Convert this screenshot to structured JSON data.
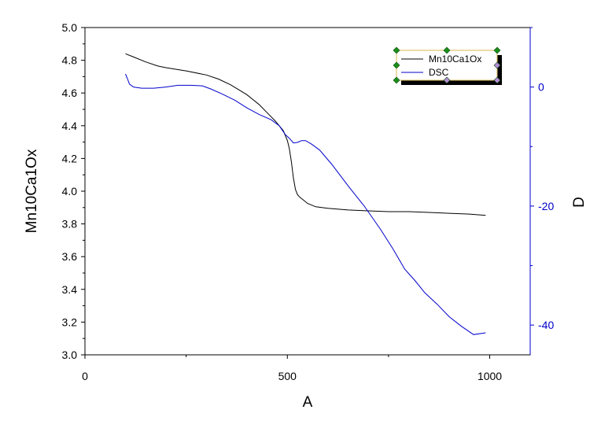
{
  "chart_data": {
    "type": "line",
    "xlabel": "A",
    "ylabel": "Mn10Ca1Ox",
    "y2label": "D",
    "xlim": [
      0,
      1100
    ],
    "ylim": [
      3.0,
      5.0
    ],
    "y2lim": [
      -45,
      10
    ],
    "xticks": [
      0,
      500,
      1000
    ],
    "yticks": [
      3.0,
      3.2,
      3.4,
      3.6,
      3.8,
      4.0,
      4.2,
      4.4,
      4.6,
      4.8,
      5.0
    ],
    "y2ticks": [
      0,
      -20,
      -40
    ],
    "legend_position": "top-right",
    "series": [
      {
        "name": "Mn10Ca1Ox",
        "axis": "left",
        "color": "#000000",
        "x": [
          100,
          120,
          150,
          180,
          200,
          250,
          300,
          330,
          360,
          400,
          430,
          450,
          470,
          490,
          500,
          505,
          510,
          515,
          520,
          525,
          530,
          535,
          540,
          550,
          570,
          600,
          650,
          700,
          750,
          800,
          850,
          900,
          950,
          990
        ],
        "y": [
          4.84,
          4.82,
          4.79,
          4.765,
          4.755,
          4.735,
          4.71,
          4.685,
          4.65,
          4.59,
          4.53,
          4.48,
          4.43,
          4.37,
          4.31,
          4.26,
          4.18,
          4.08,
          4.01,
          3.98,
          3.965,
          3.955,
          3.945,
          3.925,
          3.905,
          3.895,
          3.885,
          3.88,
          3.875,
          3.875,
          3.87,
          3.865,
          3.86,
          3.852
        ]
      },
      {
        "name": "DSC",
        "axis": "right",
        "color": "#0000cc",
        "x": [
          100,
          105,
          110,
          120,
          140,
          170,
          200,
          230,
          260,
          290,
          310,
          340,
          370,
          400,
          430,
          460,
          480,
          495,
          505,
          515,
          525,
          535,
          545,
          560,
          580,
          610,
          650,
          690,
          730,
          760,
          790,
          815,
          840,
          870,
          900,
          930,
          960,
          990
        ],
        "y": [
          2.2,
          1.4,
          0.5,
          0.0,
          -0.2,
          -0.2,
          0.0,
          0.3,
          0.3,
          0.2,
          -0.3,
          -1.2,
          -2.2,
          -3.5,
          -4.6,
          -5.5,
          -6.5,
          -8.0,
          -8.6,
          -9.4,
          -9.3,
          -9.0,
          -9.0,
          -9.6,
          -10.6,
          -13.0,
          -16.6,
          -20.0,
          -23.9,
          -27.1,
          -30.6,
          -32.5,
          -34.6,
          -36.5,
          -38.6,
          -40.2,
          -41.6,
          -41.3
        ]
      }
    ]
  }
}
